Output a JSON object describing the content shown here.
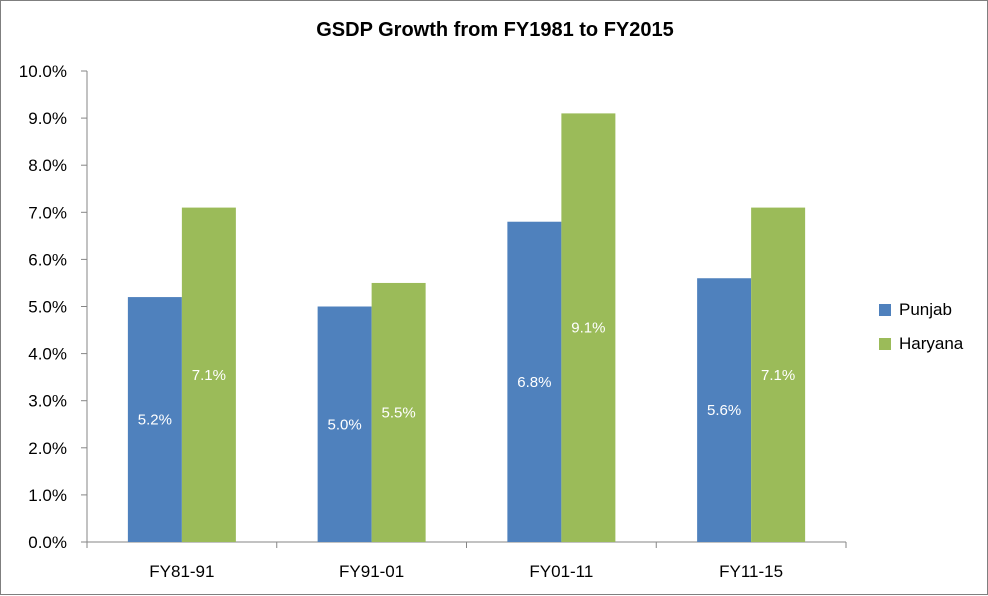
{
  "chart_data": {
    "type": "bar",
    "title": "GSDP Growth from FY1981 to FY2015",
    "xlabel": "",
    "ylabel": "",
    "ylim": [
      0,
      10
    ],
    "y_step": 1,
    "y_tick_labels": [
      "0.0%",
      "1.0%",
      "2.0%",
      "3.0%",
      "4.0%",
      "5.0%",
      "6.0%",
      "7.0%",
      "8.0%",
      "9.0%",
      "10.0%"
    ],
    "categories": [
      "FY81-91",
      "FY91-01",
      "FY01-11",
      "FY11-15"
    ],
    "series": [
      {
        "name": "Punjab",
        "color": "#4f81bd",
        "values": [
          5.2,
          5.0,
          6.8,
          5.6
        ],
        "labels": [
          "5.2%",
          "5.0%",
          "6.8%",
          "5.6%"
        ]
      },
      {
        "name": "Haryana",
        "color": "#9bbb59",
        "values": [
          7.1,
          5.5,
          9.1,
          7.1
        ],
        "labels": [
          "7.1%",
          "5.5%",
          "9.1%",
          "7.1%"
        ]
      }
    ],
    "legend_position": "right",
    "grid": false
  }
}
